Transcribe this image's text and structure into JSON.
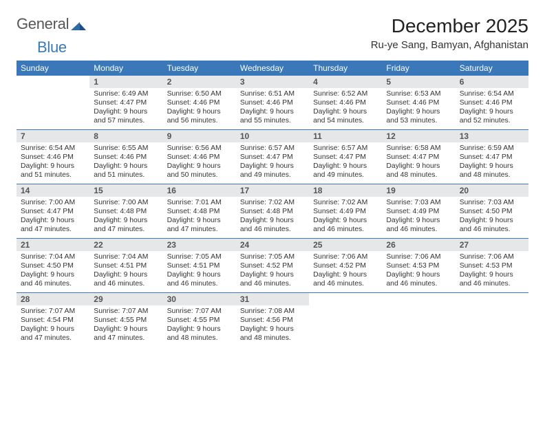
{
  "logo": {
    "text1": "General",
    "text2": "Blue",
    "text1_color": "#565656",
    "text2_color": "#3a78b9"
  },
  "title": "December 2025",
  "location": "Ru-ye Sang, Bamyan, Afghanistan",
  "colors": {
    "header_bg": "#3a78b9",
    "header_text": "#ffffff",
    "daynum_bg": "#e6e7e8",
    "border": "#3a78b9",
    "text": "#333333",
    "background": "#ffffff"
  },
  "fonts": {
    "title_size": 28,
    "location_size": 15,
    "dow_size": 12,
    "daynum_size": 12,
    "info_size": 10.4
  },
  "days_of_week": [
    "Sunday",
    "Monday",
    "Tuesday",
    "Wednesday",
    "Thursday",
    "Friday",
    "Saturday"
  ],
  "weeks": [
    [
      {
        "num": "",
        "sunrise": "",
        "sunset": "",
        "daylight1": "",
        "daylight2": ""
      },
      {
        "num": "1",
        "sunrise": "Sunrise: 6:49 AM",
        "sunset": "Sunset: 4:47 PM",
        "daylight1": "Daylight: 9 hours",
        "daylight2": "and 57 minutes."
      },
      {
        "num": "2",
        "sunrise": "Sunrise: 6:50 AM",
        "sunset": "Sunset: 4:46 PM",
        "daylight1": "Daylight: 9 hours",
        "daylight2": "and 56 minutes."
      },
      {
        "num": "3",
        "sunrise": "Sunrise: 6:51 AM",
        "sunset": "Sunset: 4:46 PM",
        "daylight1": "Daylight: 9 hours",
        "daylight2": "and 55 minutes."
      },
      {
        "num": "4",
        "sunrise": "Sunrise: 6:52 AM",
        "sunset": "Sunset: 4:46 PM",
        "daylight1": "Daylight: 9 hours",
        "daylight2": "and 54 minutes."
      },
      {
        "num": "5",
        "sunrise": "Sunrise: 6:53 AM",
        "sunset": "Sunset: 4:46 PM",
        "daylight1": "Daylight: 9 hours",
        "daylight2": "and 53 minutes."
      },
      {
        "num": "6",
        "sunrise": "Sunrise: 6:54 AM",
        "sunset": "Sunset: 4:46 PM",
        "daylight1": "Daylight: 9 hours",
        "daylight2": "and 52 minutes."
      }
    ],
    [
      {
        "num": "7",
        "sunrise": "Sunrise: 6:54 AM",
        "sunset": "Sunset: 4:46 PM",
        "daylight1": "Daylight: 9 hours",
        "daylight2": "and 51 minutes."
      },
      {
        "num": "8",
        "sunrise": "Sunrise: 6:55 AM",
        "sunset": "Sunset: 4:46 PM",
        "daylight1": "Daylight: 9 hours",
        "daylight2": "and 51 minutes."
      },
      {
        "num": "9",
        "sunrise": "Sunrise: 6:56 AM",
        "sunset": "Sunset: 4:46 PM",
        "daylight1": "Daylight: 9 hours",
        "daylight2": "and 50 minutes."
      },
      {
        "num": "10",
        "sunrise": "Sunrise: 6:57 AM",
        "sunset": "Sunset: 4:47 PM",
        "daylight1": "Daylight: 9 hours",
        "daylight2": "and 49 minutes."
      },
      {
        "num": "11",
        "sunrise": "Sunrise: 6:57 AM",
        "sunset": "Sunset: 4:47 PM",
        "daylight1": "Daylight: 9 hours",
        "daylight2": "and 49 minutes."
      },
      {
        "num": "12",
        "sunrise": "Sunrise: 6:58 AM",
        "sunset": "Sunset: 4:47 PM",
        "daylight1": "Daylight: 9 hours",
        "daylight2": "and 48 minutes."
      },
      {
        "num": "13",
        "sunrise": "Sunrise: 6:59 AM",
        "sunset": "Sunset: 4:47 PM",
        "daylight1": "Daylight: 9 hours",
        "daylight2": "and 48 minutes."
      }
    ],
    [
      {
        "num": "14",
        "sunrise": "Sunrise: 7:00 AM",
        "sunset": "Sunset: 4:47 PM",
        "daylight1": "Daylight: 9 hours",
        "daylight2": "and 47 minutes."
      },
      {
        "num": "15",
        "sunrise": "Sunrise: 7:00 AM",
        "sunset": "Sunset: 4:48 PM",
        "daylight1": "Daylight: 9 hours",
        "daylight2": "and 47 minutes."
      },
      {
        "num": "16",
        "sunrise": "Sunrise: 7:01 AM",
        "sunset": "Sunset: 4:48 PM",
        "daylight1": "Daylight: 9 hours",
        "daylight2": "and 47 minutes."
      },
      {
        "num": "17",
        "sunrise": "Sunrise: 7:02 AM",
        "sunset": "Sunset: 4:48 PM",
        "daylight1": "Daylight: 9 hours",
        "daylight2": "and 46 minutes."
      },
      {
        "num": "18",
        "sunrise": "Sunrise: 7:02 AM",
        "sunset": "Sunset: 4:49 PM",
        "daylight1": "Daylight: 9 hours",
        "daylight2": "and 46 minutes."
      },
      {
        "num": "19",
        "sunrise": "Sunrise: 7:03 AM",
        "sunset": "Sunset: 4:49 PM",
        "daylight1": "Daylight: 9 hours",
        "daylight2": "and 46 minutes."
      },
      {
        "num": "20",
        "sunrise": "Sunrise: 7:03 AM",
        "sunset": "Sunset: 4:50 PM",
        "daylight1": "Daylight: 9 hours",
        "daylight2": "and 46 minutes."
      }
    ],
    [
      {
        "num": "21",
        "sunrise": "Sunrise: 7:04 AM",
        "sunset": "Sunset: 4:50 PM",
        "daylight1": "Daylight: 9 hours",
        "daylight2": "and 46 minutes."
      },
      {
        "num": "22",
        "sunrise": "Sunrise: 7:04 AM",
        "sunset": "Sunset: 4:51 PM",
        "daylight1": "Daylight: 9 hours",
        "daylight2": "and 46 minutes."
      },
      {
        "num": "23",
        "sunrise": "Sunrise: 7:05 AM",
        "sunset": "Sunset: 4:51 PM",
        "daylight1": "Daylight: 9 hours",
        "daylight2": "and 46 minutes."
      },
      {
        "num": "24",
        "sunrise": "Sunrise: 7:05 AM",
        "sunset": "Sunset: 4:52 PM",
        "daylight1": "Daylight: 9 hours",
        "daylight2": "and 46 minutes."
      },
      {
        "num": "25",
        "sunrise": "Sunrise: 7:06 AM",
        "sunset": "Sunset: 4:52 PM",
        "daylight1": "Daylight: 9 hours",
        "daylight2": "and 46 minutes."
      },
      {
        "num": "26",
        "sunrise": "Sunrise: 7:06 AM",
        "sunset": "Sunset: 4:53 PM",
        "daylight1": "Daylight: 9 hours",
        "daylight2": "and 46 minutes."
      },
      {
        "num": "27",
        "sunrise": "Sunrise: 7:06 AM",
        "sunset": "Sunset: 4:53 PM",
        "daylight1": "Daylight: 9 hours",
        "daylight2": "and 46 minutes."
      }
    ],
    [
      {
        "num": "28",
        "sunrise": "Sunrise: 7:07 AM",
        "sunset": "Sunset: 4:54 PM",
        "daylight1": "Daylight: 9 hours",
        "daylight2": "and 47 minutes."
      },
      {
        "num": "29",
        "sunrise": "Sunrise: 7:07 AM",
        "sunset": "Sunset: 4:55 PM",
        "daylight1": "Daylight: 9 hours",
        "daylight2": "and 47 minutes."
      },
      {
        "num": "30",
        "sunrise": "Sunrise: 7:07 AM",
        "sunset": "Sunset: 4:55 PM",
        "daylight1": "Daylight: 9 hours",
        "daylight2": "and 48 minutes."
      },
      {
        "num": "31",
        "sunrise": "Sunrise: 7:08 AM",
        "sunset": "Sunset: 4:56 PM",
        "daylight1": "Daylight: 9 hours",
        "daylight2": "and 48 minutes."
      },
      {
        "num": "",
        "sunrise": "",
        "sunset": "",
        "daylight1": "",
        "daylight2": ""
      },
      {
        "num": "",
        "sunrise": "",
        "sunset": "",
        "daylight1": "",
        "daylight2": ""
      },
      {
        "num": "",
        "sunrise": "",
        "sunset": "",
        "daylight1": "",
        "daylight2": ""
      }
    ]
  ]
}
